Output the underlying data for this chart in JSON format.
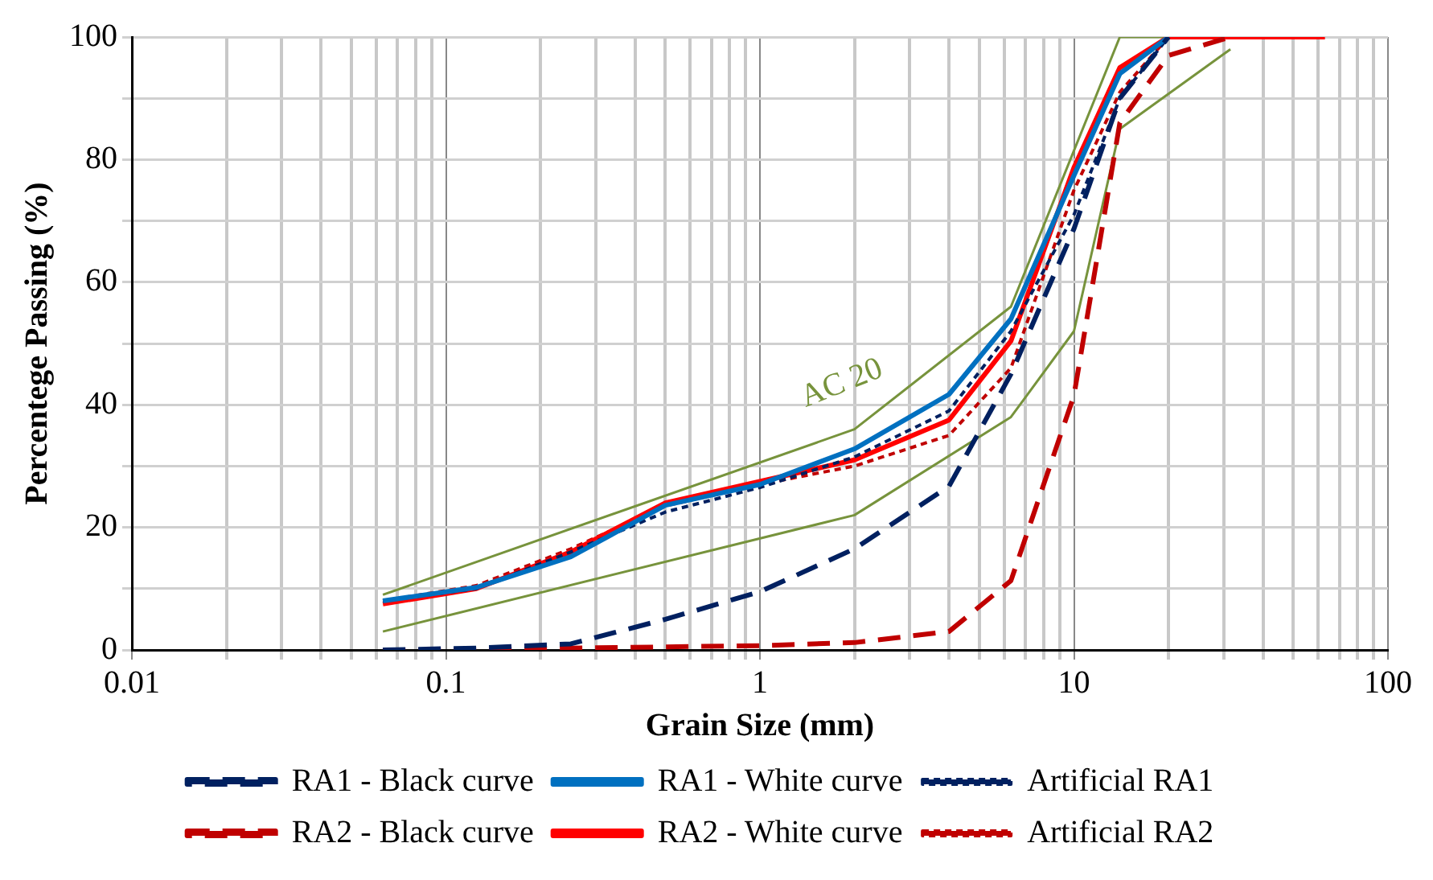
{
  "chart_data": {
    "type": "line",
    "xlabel": "Grain Size (mm)",
    "ylabel": "Percentege Passing (%)",
    "log": "x",
    "xlim": [
      0.01,
      100
    ],
    "ylim": [
      0,
      100
    ],
    "xticks": [
      {
        "value": 0.01,
        "label": "0.01"
      },
      {
        "value": 0.02,
        "label": null
      },
      {
        "value": 0.03,
        "label": null
      },
      {
        "value": 0.04,
        "label": null
      },
      {
        "value": 0.05,
        "label": null
      },
      {
        "value": 0.06,
        "label": null
      },
      {
        "value": 0.07,
        "label": null
      },
      {
        "value": 0.08,
        "label": null
      },
      {
        "value": 0.09,
        "label": null
      },
      {
        "value": 0.1,
        "label": "0.1"
      },
      {
        "value": 0.2,
        "label": null
      },
      {
        "value": 0.3,
        "label": null
      },
      {
        "value": 0.4,
        "label": null
      },
      {
        "value": 0.5,
        "label": null
      },
      {
        "value": 0.6,
        "label": null
      },
      {
        "value": 0.7,
        "label": null
      },
      {
        "value": 0.8,
        "label": null
      },
      {
        "value": 0.9,
        "label": null
      },
      1,
      {
        "value": 2,
        "label": null
      },
      {
        "value": 3,
        "label": null
      },
      {
        "value": 4,
        "label": null
      },
      {
        "value": 5,
        "label": null
      },
      {
        "value": 6,
        "label": null
      },
      {
        "value": 7,
        "label": null
      },
      {
        "value": 8,
        "label": null
      },
      {
        "value": 9,
        "label": null
      },
      10,
      {
        "value": 20,
        "label": null
      },
      {
        "value": 30,
        "label": null
      },
      {
        "value": 40,
        "label": null
      },
      {
        "value": 50,
        "label": null
      },
      {
        "value": 60,
        "label": null
      },
      {
        "value": 70,
        "label": null
      },
      {
        "value": 80,
        "label": null
      },
      {
        "value": 90,
        "label": null
      },
      100
    ],
    "yticks": [
      0,
      {
        "value": 10,
        "label": null
      },
      20,
      {
        "value": 30,
        "label": null
      },
      40,
      {
        "value": 50,
        "label": null
      },
      60,
      {
        "value": 70,
        "label": null
      },
      80,
      {
        "value": 90,
        "label": null
      },
      100
    ],
    "grid": true,
    "legend": "bottom",
    "marker": "none",
    "annotations": [
      "AC 20"
    ],
    "series": [
      {
        "name": "RA1 - Black curve",
        "color": "#002060",
        "line_style": "dashed",
        "x": [
          0.063,
          0.125,
          0.25,
          0.5,
          1,
          2,
          4,
          6.3,
          10,
          14,
          20
        ],
        "values": [
          0,
          0.3,
          1,
          5,
          9.5,
          16.5,
          26.7,
          45,
          68.7,
          90,
          100
        ]
      },
      {
        "name": "RA1 - White curve",
        "color": "#0070c0",
        "line_style": "solid",
        "x": [
          0.063,
          0.125,
          0.25,
          0.5,
          1,
          2,
          4,
          6.3,
          10,
          14,
          20
        ],
        "values": [
          8,
          10.2,
          15.2,
          23.6,
          27,
          32.8,
          41.7,
          54,
          77.4,
          94,
          100
        ]
      },
      {
        "name": "Artificial RA1",
        "color": "#002060",
        "line_style": "dotted",
        "x": [
          0.063,
          0.125,
          0.25,
          0.5,
          1,
          2,
          4,
          6.3,
          10,
          14,
          20
        ],
        "values": [
          8,
          10,
          16,
          22.5,
          26.5,
          31.5,
          39,
          52,
          71,
          90,
          100
        ]
      },
      {
        "name": "RA2 - Black curve",
        "color": "#c00000",
        "line_style": "dashed",
        "x": [
          0.063,
          0.125,
          0.25,
          0.5,
          1,
          2,
          4,
          6.3,
          10,
          14,
          20,
          31.5
        ],
        "values": [
          0,
          0,
          0.3,
          0.5,
          0.7,
          1.2,
          3,
          11.3,
          41.5,
          86,
          97,
          100
        ]
      },
      {
        "name": "RA2 - White curve",
        "color": "#ff0000",
        "line_style": "solid",
        "x": [
          0.063,
          0.125,
          0.25,
          0.5,
          1,
          2,
          4,
          6.3,
          10,
          14,
          20,
          63
        ],
        "values": [
          7.5,
          10,
          16,
          24,
          27.5,
          31,
          37.5,
          50.4,
          78.7,
          95,
          100,
          100
        ]
      },
      {
        "name": "Artificial RA2",
        "color": "#c00000",
        "line_style": "dotted",
        "x": [
          0.063,
          0.125,
          0.25,
          0.5,
          1,
          2,
          4,
          6.3,
          10,
          14,
          20
        ],
        "values": [
          8,
          10.5,
          16.5,
          23.5,
          27,
          30,
          35,
          46,
          75,
          91,
          100
        ]
      },
      {
        "color": "#77933c",
        "line_style": "solid",
        "x": [
          0.063,
          2,
          6.3,
          14,
          31.5
        ],
        "values": [
          9,
          36,
          56,
          100,
          100
        ]
      },
      {
        "color": "#77933c",
        "line_style": "solid",
        "x": [
          0.063,
          2,
          6.3,
          10,
          14,
          31.5
        ],
        "values": [
          3,
          22,
          38,
          52,
          85,
          98
        ]
      }
    ]
  }
}
